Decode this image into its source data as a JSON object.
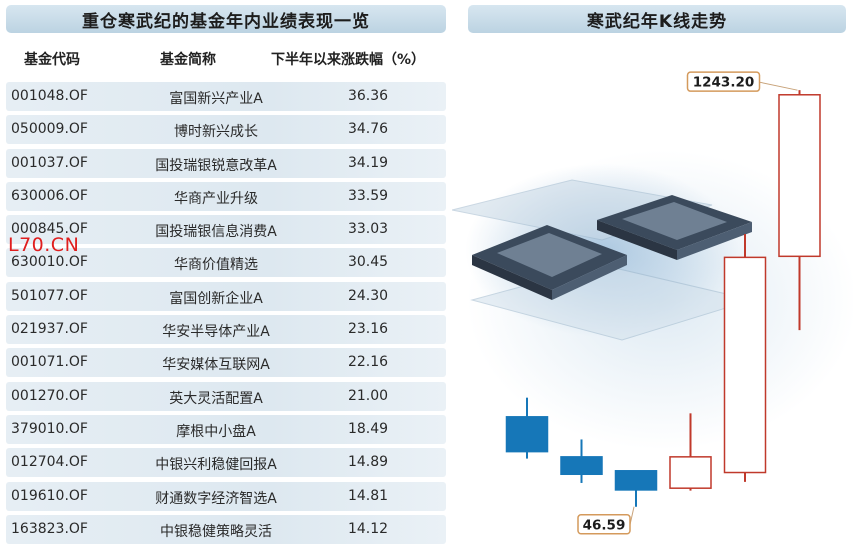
{
  "table": {
    "title": "重仓寒武纪的基金年内业绩表现一览",
    "headers": [
      "基金代码",
      "基金简称",
      "下半年以来涨跌幅（%）"
    ],
    "rows": [
      {
        "code": "001048.OF",
        "name": "富国新兴产业A",
        "change": "36.36"
      },
      {
        "code": "050009.OF",
        "name": "博时新兴成长",
        "change": "34.76"
      },
      {
        "code": "001037.OF",
        "name": "国投瑞银锐意改革A",
        "change": "34.19"
      },
      {
        "code": "630006.OF",
        "name": "华商产业升级",
        "change": "33.59"
      },
      {
        "code": "000845.OF",
        "name": "国投瑞银信息消费A",
        "change": "33.03"
      },
      {
        "code": "630010.OF",
        "name": "华商价值精选",
        "change": "30.45"
      },
      {
        "code": "501077.OF",
        "name": "富国创新企业A",
        "change": "24.30"
      },
      {
        "code": "021937.OF",
        "name": "华安半导体产业A",
        "change": "23.16"
      },
      {
        "code": "001071.OF",
        "name": "华安媒体互联网A",
        "change": "22.16"
      },
      {
        "code": "001270.OF",
        "name": "英大灵活配置A",
        "change": "21.00"
      },
      {
        "code": "379010.OF",
        "name": "摩根中小盘A",
        "change": "18.49"
      },
      {
        "code": "012704.OF",
        "name": "中银兴利稳健回报A",
        "change": "14.89"
      },
      {
        "code": "019610.OF",
        "name": "财通数字经济智选A",
        "change": "14.81"
      },
      {
        "code": "163823.OF",
        "name": "中银稳健策略灵活",
        "change": "14.12"
      }
    ]
  },
  "watermark": "L70.CN",
  "chart_data": {
    "type": "candlestick",
    "title": "寒武纪年K线走势",
    "xlabel": "",
    "ylabel": "",
    "ylim": [
      0,
      1350
    ],
    "grid": false,
    "annotations": [
      {
        "text": "1243.20",
        "target": "max-high"
      },
      {
        "text": "46.59",
        "target": "min-low"
      }
    ],
    "candles": [
      {
        "open": 305,
        "close": 205,
        "high": 360,
        "low": 185,
        "direction": "down"
      },
      {
        "open": 190,
        "close": 140,
        "high": 240,
        "low": 115,
        "direction": "down"
      },
      {
        "open": 150,
        "close": 95,
        "high": 150,
        "low": 46.59,
        "direction": "down"
      },
      {
        "open": 100,
        "close": 190,
        "high": 315,
        "low": 93,
        "direction": "up"
      },
      {
        "open": 145,
        "close": 763,
        "high": 830,
        "low": 118,
        "direction": "up"
      },
      {
        "open": 766,
        "close": 1230,
        "high": 1243.2,
        "low": 554,
        "direction": "up"
      }
    ],
    "colors": {
      "up_fill": "#ffffff",
      "up_stroke": "#c0392b",
      "down_fill": "#1677b8",
      "down_stroke": "#1677b8"
    }
  }
}
